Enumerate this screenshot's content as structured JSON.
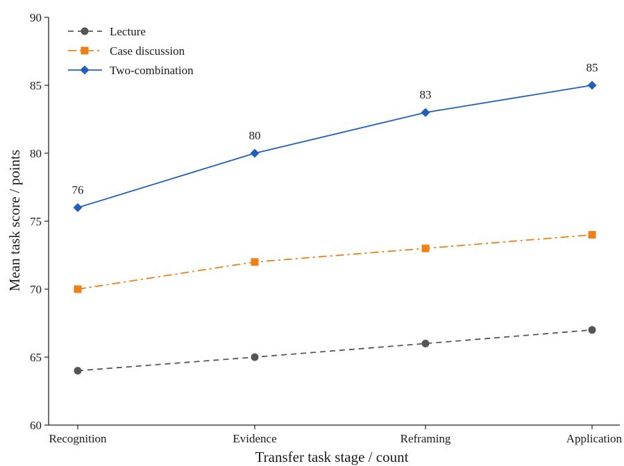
{
  "chart_data": {
    "type": "line",
    "xlabel": "Transfer task stage / count",
    "ylabel": "Mean task score / points",
    "categories": [
      "Recognition",
      "Evidence",
      "Reframing",
      "Application"
    ],
    "ylim": [
      60,
      90
    ],
    "yticks": [
      60,
      65,
      70,
      75,
      80,
      85,
      90
    ],
    "grid": false,
    "legend_position": "top-left",
    "series": [
      {
        "name": "Lecture",
        "values": [
          64,
          65,
          66,
          67
        ],
        "color": "#555555",
        "marker": "circle",
        "dash": "dashed",
        "show_labels": false
      },
      {
        "name": "Case discussion",
        "values": [
          70,
          72,
          73,
          74
        ],
        "color": "#f07f16",
        "marker": "square",
        "dash": "dashdot",
        "show_labels": false
      },
      {
        "name": "Two-combination",
        "values": [
          76,
          80,
          83,
          85
        ],
        "color": "#1f5fbf",
        "marker": "diamond",
        "dash": "solid",
        "show_labels": true
      }
    ]
  }
}
